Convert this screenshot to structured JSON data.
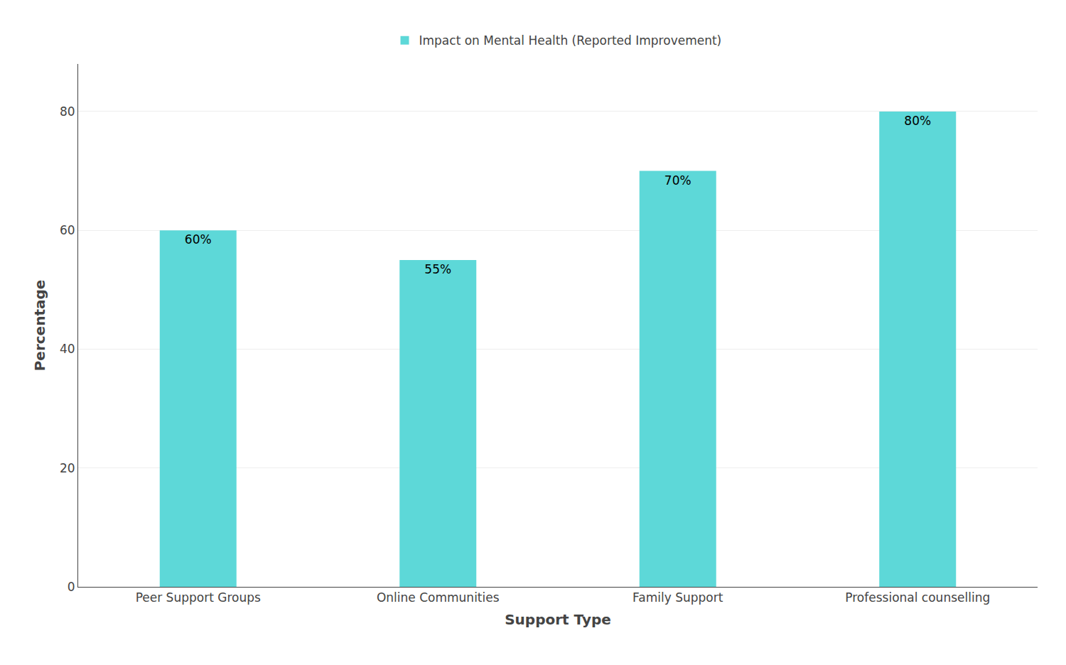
{
  "chart_data": {
    "type": "bar",
    "categories": [
      "Peer Support Groups",
      "Online Communities",
      "Family Support",
      "Professional counselling"
    ],
    "series": [
      {
        "name": "Impact on Mental Health (Reported Improvement)",
        "color": "#5DD8D8",
        "values": [
          60,
          55,
          70,
          80
        ],
        "value_labels": [
          "60%",
          "55%",
          "70%",
          "80%"
        ]
      }
    ],
    "xlabel": "Support Type",
    "ylabel": "Percentage",
    "ylim": [
      0,
      88
    ],
    "yticks": [
      0,
      20,
      40,
      60,
      80
    ],
    "grid": true,
    "data_labels": true,
    "legend": "upper center"
  }
}
